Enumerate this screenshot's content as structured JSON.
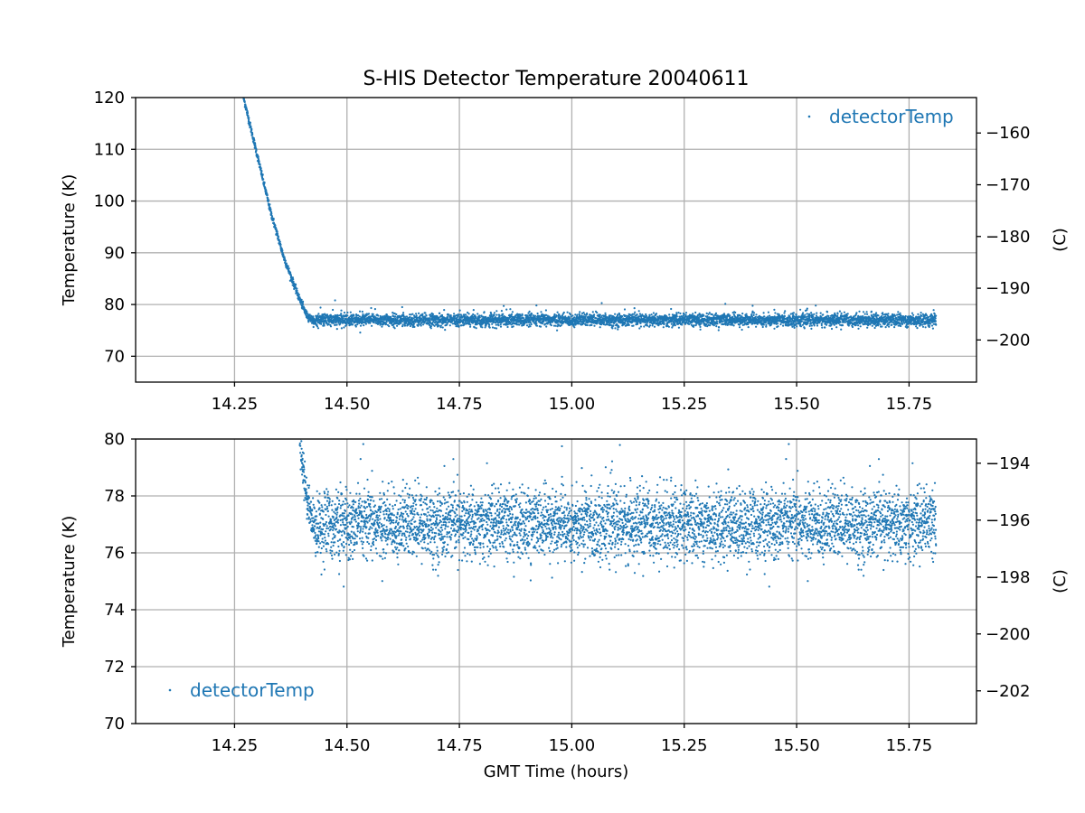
{
  "figure": {
    "title": "S-HIS Detector Temperature 20040611",
    "xlabel": "GMT Time (hours)"
  },
  "chart_data": [
    {
      "type": "scatter",
      "panel": "top",
      "series": [
        {
          "name": "detectorTemp",
          "color": "#1f77b4",
          "description_points": [
            [
              14.27,
              120.0
            ],
            [
              14.3,
              109.0
            ],
            [
              14.33,
              98.0
            ],
            [
              14.36,
              89.0
            ],
            [
              14.39,
              82.0
            ],
            [
              14.41,
              78.0
            ],
            [
              14.43,
              76.5
            ],
            [
              14.5,
              77.0
            ],
            [
              15.0,
              77.0
            ],
            [
              15.5,
              77.0
            ],
            [
              15.81,
              77.0
            ]
          ],
          "steady_state": {
            "x_start": 14.43,
            "x_end": 15.81,
            "mean": 77.0,
            "spread": 0.6
          }
        }
      ],
      "xlim": [
        14.03,
        15.9
      ],
      "ylim": [
        65,
        120
      ],
      "xticks": [
        "14.25",
        "14.50",
        "14.75",
        "15.00",
        "15.25",
        "15.50",
        "15.75"
      ],
      "yticks": [
        "70",
        "80",
        "90",
        "100",
        "110",
        "120"
      ],
      "ylabel": "Temperature (K)",
      "secondary_y": {
        "label": "(C)",
        "ticks": [
          "−160",
          "−170",
          "−180",
          "−190",
          "−200"
        ],
        "offset_kelvin": 273.15
      },
      "grid": true,
      "legend": {
        "label": "detectorTemp",
        "location": "upper right"
      }
    },
    {
      "type": "scatter",
      "panel": "bottom",
      "series": [
        {
          "name": "detectorTemp",
          "color": "#1f77b4",
          "description_points": [
            [
              14.395,
              80.0
            ],
            [
              14.41,
              78.0
            ],
            [
              14.43,
              76.8
            ],
            [
              14.5,
              77.1
            ],
            [
              15.0,
              77.0
            ],
            [
              15.5,
              77.1
            ],
            [
              15.81,
              77.0
            ]
          ],
          "steady_state": {
            "x_start": 14.43,
            "x_end": 15.81,
            "mean": 77.0,
            "spread": 0.6
          }
        }
      ],
      "xlim": [
        14.03,
        15.9
      ],
      "ylim": [
        70,
        80
      ],
      "xticks": [
        "14.25",
        "14.50",
        "14.75",
        "15.00",
        "15.25",
        "15.50",
        "15.75"
      ],
      "yticks": [
        "70",
        "72",
        "74",
        "76",
        "78",
        "80"
      ],
      "ylabel": "Temperature (K)",
      "secondary_y": {
        "label": "(C)",
        "ticks": [
          "−194",
          "−196",
          "−198",
          "−200",
          "−202"
        ],
        "offset_kelvin": 273.15
      },
      "grid": true,
      "legend": {
        "label": "detectorTemp",
        "location": "lower left"
      }
    }
  ]
}
